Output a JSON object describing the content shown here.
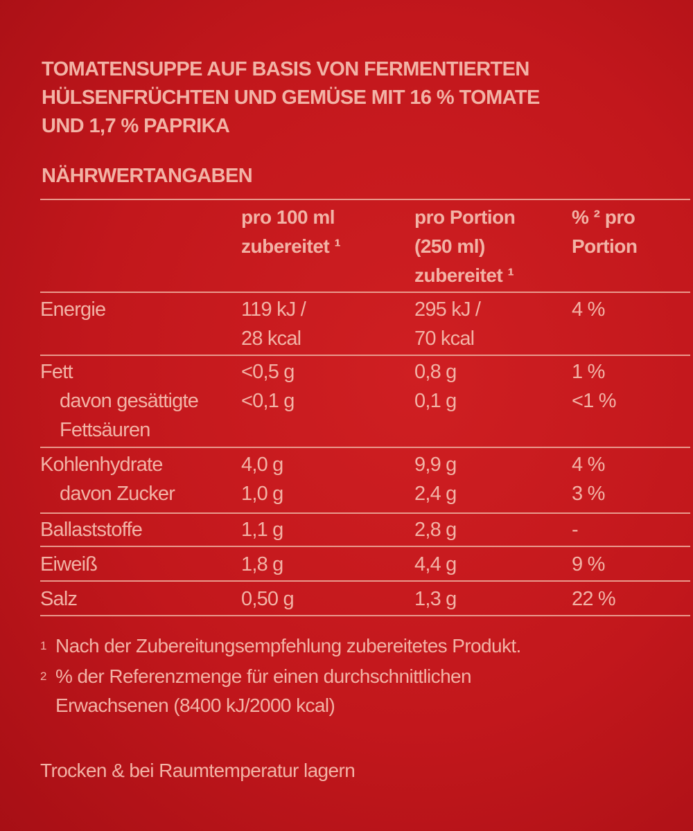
{
  "title_lines": [
    "TOMATENSUPPE AUF BASIS VON FERMENTIERTEN",
    "HÜLSENFRÜCHTEN UND GEMÜSE MIT 16 % TOMATE",
    "UND 1,7 % PAPRIKA"
  ],
  "section_heading": "NÄHRWERTANGABEN",
  "table": {
    "header": [
      "pro 100 ml\nzubereitet ¹",
      "pro Portion\n(250 ml)\nzubereitet ¹",
      "% ² pro\nPortion"
    ],
    "groups": [
      {
        "rows": [
          {
            "label": "Energie",
            "cells": [
              "119 kJ /\n28 kcal",
              "295 kJ /\n70 kcal",
              "4 %"
            ]
          }
        ]
      },
      {
        "rows": [
          {
            "label": "Fett",
            "cells": [
              "<0,5 g",
              "0,8 g",
              "1 %"
            ]
          }
        ],
        "sub_rows": [
          {
            "label": "davon gesättigte\nFettsäuren",
            "cells": [
              "<0,1 g",
              "0,1 g",
              "<1 %"
            ]
          }
        ]
      },
      {
        "rows": [
          {
            "label": "Kohlenhydrate",
            "cells": [
              "4,0 g",
              "9,9 g",
              "4 %"
            ]
          }
        ],
        "sub_rows": [
          {
            "label": "davon Zucker",
            "cells": [
              "1,0 g",
              "2,4 g",
              "3 %"
            ]
          }
        ]
      },
      {
        "rows": [
          {
            "label": "Ballaststoffe",
            "cells": [
              "1,1 g",
              "2,8 g",
              "-"
            ]
          }
        ]
      },
      {
        "rows": [
          {
            "label": "Eiweiß",
            "cells": [
              "1,8 g",
              "4,4 g",
              "9 %"
            ]
          }
        ]
      },
      {
        "rows": [
          {
            "label": "Salz",
            "cells": [
              "0,50 g",
              "1,3 g",
              "22 %"
            ]
          }
        ]
      }
    ]
  },
  "footnotes": [
    {
      "mark": "1",
      "text": "Nach der Zubereitungsempfehlung zubereitetes Produkt."
    },
    {
      "mark": "2",
      "text": "% der Referenzmenge für einen durchschnittlichen\nErwachsenen (8400 kJ/2000 kcal)"
    }
  ],
  "storage_note": "Trocken & bei Raumtemperatur lagern"
}
